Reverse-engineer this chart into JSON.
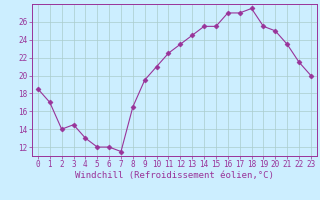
{
  "x": [
    0,
    1,
    2,
    3,
    4,
    5,
    6,
    7,
    8,
    9,
    10,
    11,
    12,
    13,
    14,
    15,
    16,
    17,
    18,
    19,
    20,
    21,
    22,
    23
  ],
  "y": [
    18.5,
    17.0,
    14.0,
    14.5,
    13.0,
    12.0,
    12.0,
    11.5,
    16.5,
    19.5,
    21.0,
    22.5,
    23.5,
    24.5,
    25.5,
    25.5,
    27.0,
    27.0,
    27.5,
    25.5,
    25.0,
    23.5,
    21.5,
    20.0
  ],
  "line_color": "#993399",
  "marker": "D",
  "marker_size": 2.5,
  "background_color": "#cceeff",
  "grid_color": "#aacccc",
  "xlabel": "Windchill (Refroidissement éolien,°C)",
  "ylabel": "",
  "xlim": [
    -0.5,
    23.5
  ],
  "ylim": [
    11.0,
    28.0
  ],
  "yticks": [
    12,
    14,
    16,
    18,
    20,
    22,
    24,
    26
  ],
  "xticks": [
    0,
    1,
    2,
    3,
    4,
    5,
    6,
    7,
    8,
    9,
    10,
    11,
    12,
    13,
    14,
    15,
    16,
    17,
    18,
    19,
    20,
    21,
    22,
    23
  ],
  "tick_label_size": 5.5,
  "xlabel_size": 6.5,
  "axis_color": "#993399",
  "spine_color": "#993399",
  "linewidth": 0.8
}
